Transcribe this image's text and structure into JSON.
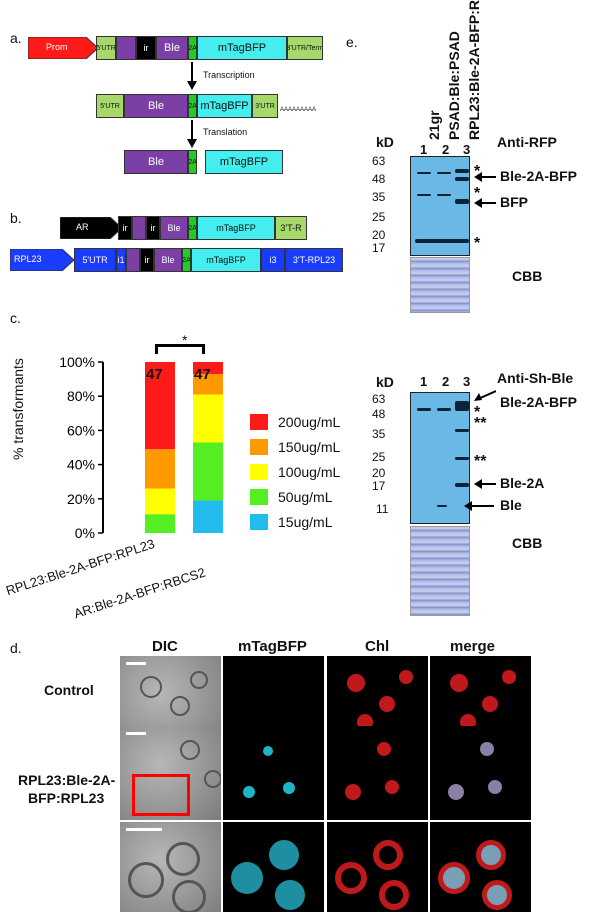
{
  "panels": {
    "a": "a.",
    "b": "b.",
    "c": "c.",
    "d": "d.",
    "e": "e."
  },
  "panel_a": {
    "row1": [
      "Prom",
      "5'UTR",
      "ir",
      "Ble",
      "2A",
      "mTagBFP",
      "3'UTR/Term"
    ],
    "transcription": "Transcription",
    "row2": [
      "5'UTR",
      "Ble",
      "2A",
      "mTagBFP",
      "3'UTR"
    ],
    "polya": "AAAAAAAAA",
    "translation": "Translation",
    "row3": [
      "Ble",
      "2A",
      "mTagBFP"
    ]
  },
  "panel_b": {
    "row1": [
      "AR",
      "ir",
      "ir",
      "Ble",
      "2A",
      "mTagBFP",
      "3'T-R"
    ],
    "row2": [
      "RPL23",
      "5'UTR",
      "i1",
      "ir",
      "Ble",
      "2A",
      "mTagBFP",
      "i3",
      "3'T-RPL23"
    ]
  },
  "panel_c": {
    "significance": "*",
    "ylabel": "% transformants",
    "yticks": [
      "100%",
      "80%",
      "60%",
      "40%",
      "20%",
      "0%"
    ],
    "legend": [
      {
        "label": "200ug/mL",
        "color": "#ff1a1a"
      },
      {
        "label": "150ug/mL",
        "color": "#ff9900"
      },
      {
        "label": "100ug/mL",
        "color": "#ffff00"
      },
      {
        "label": "50ug/mL",
        "color": "#55ee22"
      },
      {
        "label": "15ug/mL",
        "color": "#22bbee"
      }
    ]
  },
  "chart_data": {
    "type": "bar",
    "stacked": true,
    "categories": [
      "RPL23:Ble-2A-BFP:RPL23",
      "AR:Ble-2A-BFP:RBCS2"
    ],
    "n_labels": [
      "47",
      "47"
    ],
    "ylabel": "% transformants",
    "ylim": [
      0,
      100
    ],
    "series": [
      {
        "name": "15ug/mL",
        "values": [
          0,
          19
        ]
      },
      {
        "name": "50ug/mL",
        "values": [
          11,
          34
        ]
      },
      {
        "name": "100ug/mL",
        "values": [
          15,
          28
        ]
      },
      {
        "name": "150ug/mL",
        "values": [
          23,
          12
        ]
      },
      {
        "name": "200ug/mL",
        "values": [
          51,
          7
        ]
      }
    ]
  },
  "panel_d": {
    "columns": [
      "DIC",
      "mTagBFP",
      "Chl",
      "merge"
    ],
    "rows": [
      "Control",
      "RPL23:Ble-2A-",
      "BFP:RPL23"
    ]
  },
  "panel_e": {
    "lanes": [
      "21gr",
      "PSAD:Ble:PSAD",
      "RPL23:Ble-2A-BFP:RPL23"
    ],
    "lane_numbers": [
      "1",
      "2",
      "3"
    ],
    "kd": "kD",
    "top": {
      "antibody": "Anti-RFP",
      "markers": [
        "63",
        "48",
        "35",
        "25",
        "20",
        "17"
      ],
      "arrows": [
        "Ble-2A-BFP",
        "BFP"
      ],
      "stars": [
        "*",
        "*",
        "*"
      ],
      "cbb": "CBB"
    },
    "bottom": {
      "antibody": "Anti-Sh-Ble",
      "markers": [
        "63",
        "48",
        "35",
        "25",
        "20",
        "17",
        "11"
      ],
      "arrows": [
        "Ble-2A-BFP",
        "Ble-2A",
        "Ble"
      ],
      "stars": [
        "*",
        "**",
        "**"
      ],
      "cbb": "CBB"
    }
  }
}
